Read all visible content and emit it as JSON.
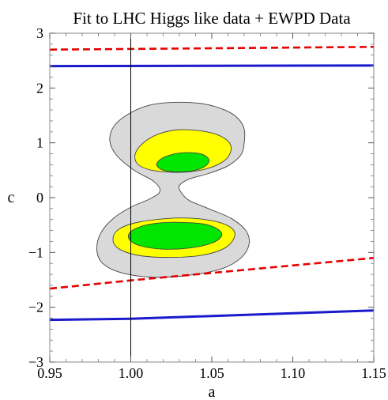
{
  "chart_data": {
    "type": "contour",
    "title": "Fit to LHC Higgs like data + EWPD Data",
    "xlabel": "a",
    "ylabel": "c",
    "xlim": [
      0.95,
      1.15
    ],
    "ylim": [
      -3,
      3
    ],
    "x_ticks": [
      "0.95",
      "1.00",
      "1.05",
      "1.10",
      "1.15"
    ],
    "x_tick_values": [
      0.95,
      1.0,
      1.05,
      1.1,
      1.15
    ],
    "y_ticks": [
      "−3",
      "−2",
      "−1",
      "0",
      "1",
      "2",
      "3"
    ],
    "y_tick_values": [
      -3,
      -2,
      -1,
      0,
      1,
      2,
      3
    ],
    "grid": false,
    "reference_line": {
      "orientation": "vertical",
      "x": 1.0,
      "color": "#000000"
    },
    "series": [
      {
        "style": "solid",
        "color": "#1a1acc",
        "values": [
          [
            0.95,
            2.4
          ],
          [
            1.15,
            2.41
          ]
        ]
      },
      {
        "style": "dashed",
        "color": "#e60000",
        "values": [
          [
            0.95,
            2.7
          ],
          [
            1.15,
            2.75
          ]
        ]
      },
      {
        "style": "dashed",
        "color": "#e60000",
        "values": [
          [
            0.95,
            -1.66
          ],
          [
            1.0,
            -1.51
          ],
          [
            1.15,
            -1.1
          ]
        ]
      },
      {
        "style": "solid",
        "color": "#1a1acc",
        "values": [
          [
            0.95,
            -2.23
          ],
          [
            1.0,
            -2.21
          ],
          [
            1.15,
            -2.06
          ]
        ]
      }
    ],
    "regions": [
      {
        "level": "outer",
        "fill": "#d9d9d9",
        "points": [
          [
            1.027,
            1.74
          ],
          [
            1.045,
            1.71
          ],
          [
            1.058,
            1.6
          ],
          [
            1.066,
            1.45
          ],
          [
            1.07,
            1.25
          ],
          [
            1.07,
            1.0
          ],
          [
            1.068,
            0.78
          ],
          [
            1.06,
            0.58
          ],
          [
            1.048,
            0.44
          ],
          [
            1.036,
            0.34
          ],
          [
            1.03,
            0.22
          ],
          [
            1.031,
            0.1
          ],
          [
            1.036,
            -0.05
          ],
          [
            1.048,
            -0.2
          ],
          [
            1.062,
            -0.38
          ],
          [
            1.071,
            -0.6
          ],
          [
            1.073,
            -0.85
          ],
          [
            1.068,
            -1.1
          ],
          [
            1.056,
            -1.3
          ],
          [
            1.035,
            -1.42
          ],
          [
            1.012,
            -1.45
          ],
          [
            0.993,
            -1.36
          ],
          [
            0.982,
            -1.18
          ],
          [
            0.979,
            -0.92
          ],
          [
            0.982,
            -0.62
          ],
          [
            0.99,
            -0.36
          ],
          [
            1.001,
            -0.16
          ],
          [
            1.012,
            -0.02
          ],
          [
            1.018,
            0.12
          ],
          [
            1.014,
            0.3
          ],
          [
            1.002,
            0.5
          ],
          [
            0.991,
            0.78
          ],
          [
            0.987,
            1.05
          ],
          [
            0.99,
            1.32
          ],
          [
            1.0,
            1.55
          ],
          [
            1.012,
            1.69
          ]
        ]
      },
      {
        "level": "middle",
        "fill": "#ffff00",
        "points": [
          [
            1.03,
            1.24
          ],
          [
            1.047,
            1.2
          ],
          [
            1.058,
            1.08
          ],
          [
            1.062,
            0.9
          ],
          [
            1.058,
            0.68
          ],
          [
            1.046,
            0.52
          ],
          [
            1.03,
            0.46
          ],
          [
            1.013,
            0.5
          ],
          [
            1.004,
            0.62
          ],
          [
            1.003,
            0.82
          ],
          [
            1.009,
            1.03
          ],
          [
            1.018,
            1.17
          ]
        ]
      },
      {
        "level": "middle",
        "fill": "#ffff00",
        "points": [
          [
            1.03,
            -0.37
          ],
          [
            1.05,
            -0.42
          ],
          [
            1.062,
            -0.55
          ],
          [
            1.064,
            -0.72
          ],
          [
            1.058,
            -0.92
          ],
          [
            1.044,
            -1.05
          ],
          [
            1.025,
            -1.09
          ],
          [
            1.006,
            -1.06
          ],
          [
            0.993,
            -0.94
          ],
          [
            0.989,
            -0.76
          ],
          [
            0.993,
            -0.57
          ],
          [
            1.006,
            -0.44
          ]
        ]
      },
      {
        "level": "inner",
        "fill": "#00e600",
        "points": [
          [
            1.034,
            0.82
          ],
          [
            1.043,
            0.8
          ],
          [
            1.048,
            0.71
          ],
          [
            1.047,
            0.6
          ],
          [
            1.04,
            0.5
          ],
          [
            1.03,
            0.47
          ],
          [
            1.02,
            0.5
          ],
          [
            1.016,
            0.6
          ],
          [
            1.019,
            0.71
          ],
          [
            1.026,
            0.79
          ]
        ]
      },
      {
        "level": "inner",
        "fill": "#00e600",
        "points": [
          [
            1.028,
            -0.45
          ],
          [
            1.045,
            -0.48
          ],
          [
            1.054,
            -0.58
          ],
          [
            1.056,
            -0.7
          ],
          [
            1.05,
            -0.83
          ],
          [
            1.036,
            -0.92
          ],
          [
            1.02,
            -0.94
          ],
          [
            1.006,
            -0.88
          ],
          [
            0.999,
            -0.76
          ],
          [
            1.0,
            -0.62
          ],
          [
            1.008,
            -0.51
          ],
          [
            1.018,
            -0.46
          ]
        ]
      }
    ]
  }
}
